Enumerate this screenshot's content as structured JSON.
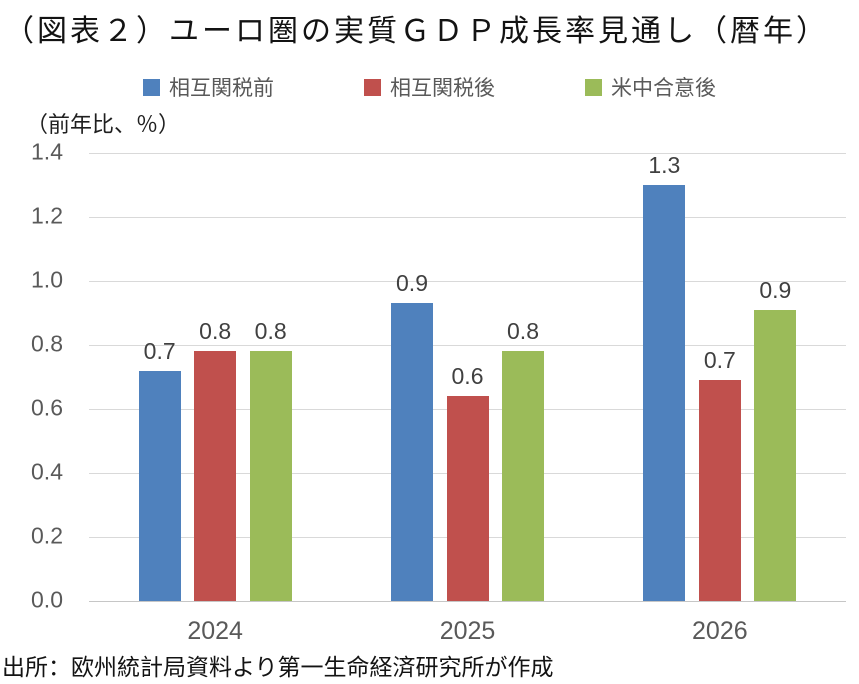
{
  "chart_data": {
    "type": "bar",
    "title": "（図表２）ユーロ圏の実質ＧＤＰ成長率見通し（暦年）",
    "unit_label": "（前年比、％）",
    "categories": [
      "2024",
      "2025",
      "2026"
    ],
    "series": [
      {
        "name": "相互関税前",
        "color": "#4F81BD",
        "values": [
          0.7,
          0.9,
          1.3
        ],
        "precise": [
          0.72,
          0.93,
          1.3
        ],
        "labels": [
          "0.7",
          "0.9",
          "1.3"
        ]
      },
      {
        "name": "相互関税後",
        "color": "#C0504D",
        "values": [
          0.8,
          0.6,
          0.7
        ],
        "precise": [
          0.78,
          0.64,
          0.69
        ],
        "labels": [
          "0.8",
          "0.6",
          "0.7"
        ]
      },
      {
        "name": "米中合意後",
        "color": "#9BBB59",
        "values": [
          0.8,
          0.8,
          0.9
        ],
        "precise": [
          0.78,
          0.78,
          0.91
        ],
        "labels": [
          "0.8",
          "0.8",
          "0.9"
        ]
      }
    ],
    "ylim": [
      0,
      1.4
    ],
    "yticks": [
      "1.4",
      "1.2",
      "1.0",
      "0.8",
      "0.6",
      "0.4",
      "0.2",
      "0.0"
    ],
    "grid": "horizontal",
    "legend_position": "top",
    "gridline_color": "#D9D9D9",
    "axis_text_color": "#595959",
    "data_label_color": "#404040"
  },
  "source": "出所：欧州統計局資料より第一生命経済研究所が作成"
}
